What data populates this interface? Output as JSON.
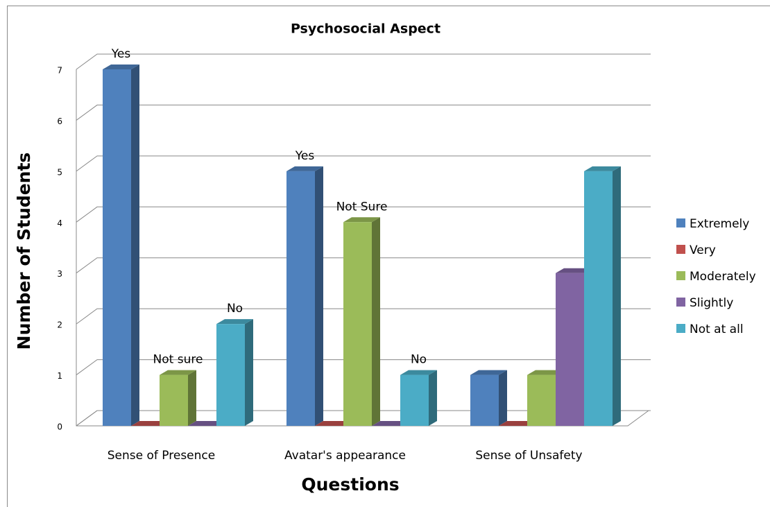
{
  "chart_data": {
    "type": "bar3d",
    "title": "Psychosocial Aspect",
    "x_label": "Questions",
    "y_label": "Number of Students",
    "categories": [
      "Sense of Presence",
      "Avatar's appearance",
      "Sense of Unsafety"
    ],
    "series": [
      {
        "name": "Extremely",
        "color": "#4f81bd",
        "values": [
          7,
          5,
          1
        ]
      },
      {
        "name": "Very",
        "color": "#c0504d",
        "values": [
          0,
          0,
          0
        ]
      },
      {
        "name": "Moderately",
        "color": "#9bbb59",
        "values": [
          1,
          4,
          1
        ]
      },
      {
        "name": "Slightly",
        "color": "#8064a2",
        "values": [
          0,
          0,
          3
        ]
      },
      {
        "name": "Not at all",
        "color": "#4bacc6",
        "values": [
          2,
          1,
          5
        ]
      }
    ],
    "annotations": [
      {
        "text": "Yes",
        "series": "Extremely",
        "category": "Sense of Presence"
      },
      {
        "text": "Not sure",
        "series": "Moderately",
        "category": "Sense of Presence"
      },
      {
        "text": "No",
        "series": "Not at all",
        "category": "Sense of Presence"
      },
      {
        "text": "Yes",
        "series": "Extremely",
        "category": "Avatar's appearance"
      },
      {
        "text": "Not Sure",
        "series": "Moderately",
        "category": "Avatar's appearance"
      },
      {
        "text": "No",
        "series": "Not at all",
        "category": "Avatar's appearance"
      }
    ],
    "ylim": [
      0,
      7
    ],
    "yticks": [
      0,
      1,
      2,
      3,
      4,
      5,
      6,
      7
    ],
    "grid": true,
    "legend": "right"
  }
}
